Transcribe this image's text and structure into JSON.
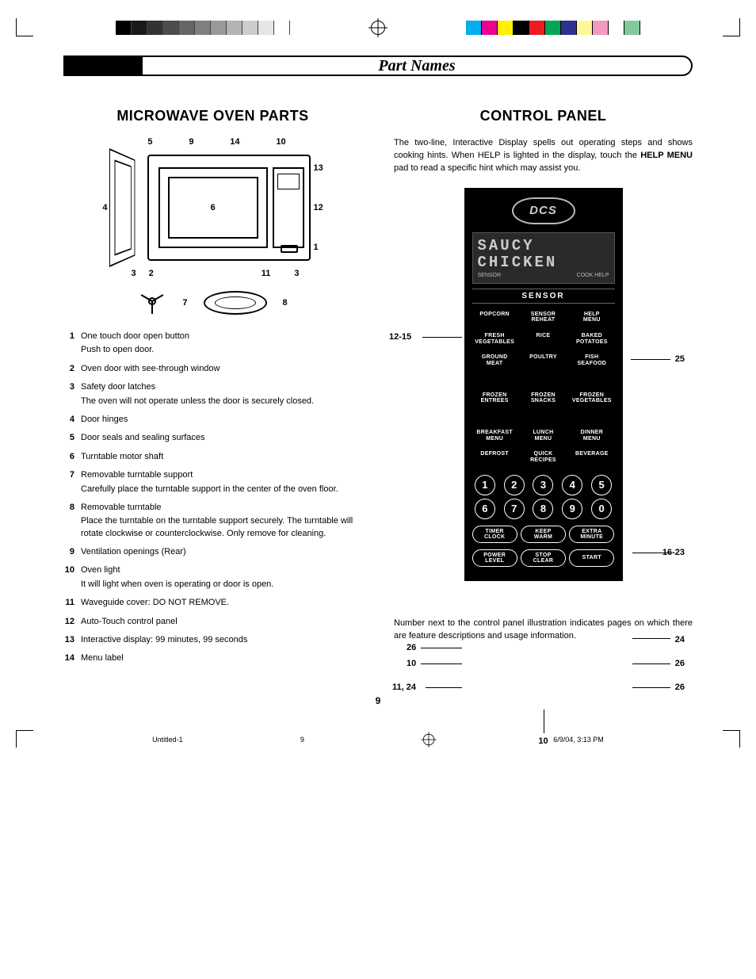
{
  "section_title": "Part Names",
  "left": {
    "heading": "MICROWAVE OVEN PARTS",
    "top_labels": [
      "5",
      "9",
      "14",
      "10"
    ],
    "right_labels": [
      "13",
      "12",
      "1"
    ],
    "left_labels": [
      "4"
    ],
    "bot_labels": [
      "3",
      "2",
      "11",
      "3"
    ],
    "acc_left_n": "7",
    "acc_right_n": "8",
    "list": [
      {
        "n": "1",
        "t": "One touch door open button",
        "sub": "Push to open door."
      },
      {
        "n": "2",
        "t": "Oven door with see-through window"
      },
      {
        "n": "3",
        "t": "Safety door latches",
        "sub": "The oven will not operate unless the door is securely closed."
      },
      {
        "n": "4",
        "t": "Door hinges"
      },
      {
        "n": "5",
        "t": "Door seals and sealing surfaces"
      },
      {
        "n": "6",
        "t": "Turntable motor shaft"
      },
      {
        "n": "7",
        "t": "Removable turntable support",
        "sub": "Carefully place the turntable support in the center of the oven floor."
      },
      {
        "n": "8",
        "t": "Removable turntable",
        "sub": "Place the turntable on the turntable support securely. The turntable will rotate clockwise or counterclockwise. Only remove for cleaning."
      },
      {
        "n": "9",
        "t": "Ventilation openings (Rear)"
      },
      {
        "n": "10",
        "t": "Oven light",
        "sub": "It will light when oven is operating or door is open."
      },
      {
        "n": "11",
        "t": "Waveguide cover: DO NOT REMOVE."
      },
      {
        "n": "12",
        "t": "Auto-Touch control panel"
      },
      {
        "n": "13",
        "t": "Interactive display: 99 minutes, 99 seconds"
      },
      {
        "n": "14",
        "t": "Menu label"
      }
    ],
    "cav_label": "6"
  },
  "right": {
    "heading": "CONTROL PANEL",
    "intro_1": "The two-line, Interactive Display spells out operating steps and shows cooking hints. When HELP is lighted in the display, touch the ",
    "intro_bold": "HELP MENU",
    "intro_2": " pad to read a specific hint which may assist you.",
    "footnote": "Number next to the control panel illustration indicates pages on which there are feature descriptions and usage information.",
    "panel": {
      "logo": "DCS",
      "disp_l1": "SAUCY",
      "disp_l2": "CHICKEN",
      "disp_sl": "SENSOR",
      "disp_sr": "COOK HELP",
      "sensor_h": "SENSOR",
      "row1": [
        "POPCORN",
        "SENSOR\nREHEAT",
        "HELP\nMENU"
      ],
      "row2": [
        "FRESH\nVEGETABLES",
        "RICE",
        "BAKED\nPOTATOES"
      ],
      "row3": [
        "GROUND\nMEAT",
        "POULTRY",
        "FISH\nSEAFOOD"
      ],
      "row4": [
        "FROZEN\nENTREES",
        "FROZEN\nSNACKS",
        "FROZEN\nVEGETABLES"
      ],
      "row5": [
        "BREAKFAST\nMENU",
        "LUNCH\nMENU",
        "DINNER\nMENU"
      ],
      "row6": [
        "DEFROST",
        "QUICK\nRECIPES",
        "BEVERAGE"
      ],
      "nums": [
        "1",
        "2",
        "3",
        "4",
        "5",
        "6",
        "7",
        "8",
        "9",
        "0"
      ],
      "funcs1": [
        "TIMER\nCLOCK",
        "KEEP\nWARM",
        "EXTRA\nMINUTE"
      ],
      "funcs2": [
        "POWER\nLEVEL",
        "STOP\nCLEAR",
        "START"
      ]
    },
    "side_labels": {
      "l_1215": "12-15",
      "l_25": "25",
      "l_1623": "16-23",
      "l_26a": "26",
      "l_24": "24",
      "l_10a": "10",
      "l_26b": "26",
      "l_1124": "11, 24",
      "l_26c": "26",
      "l_10b": "10"
    }
  },
  "page_no": "9",
  "foot_file": "Untitled-1",
  "foot_pg": "9",
  "foot_ts": "6/9/04, 3:13 PM",
  "swatches_gray": [
    "#000000",
    "#1a1a1a",
    "#333333",
    "#4d4d4d",
    "#666666",
    "#808080",
    "#999999",
    "#b3b3b3",
    "#cccccc",
    "#e6e6e6",
    "#ffffff"
  ],
  "swatches_color": [
    "#00aeef",
    "#ec008c",
    "#fff200",
    "#000000",
    "#ed1c24",
    "#00a651",
    "#2e3192",
    "#fff799",
    "#f49ac1",
    "#ffffff",
    "#82ca9c"
  ]
}
